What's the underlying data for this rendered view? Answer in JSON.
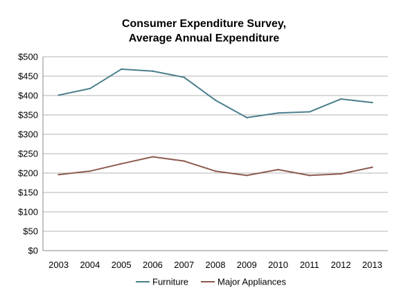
{
  "chart_data": {
    "type": "line",
    "title_line1": "Consumer Expenditure Survey,",
    "title_line2": "Average Annual Expenditure",
    "xlabel": "",
    "ylabel": "",
    "categories": [
      "2003",
      "2004",
      "2005",
      "2006",
      "2007",
      "2008",
      "2009",
      "2010",
      "2011",
      "2012",
      "2013"
    ],
    "ylim": [
      0,
      500
    ],
    "ytick_labels": [
      "$0",
      "$50",
      "$100",
      "$150",
      "$200",
      "$250",
      "$300",
      "$350",
      "$400",
      "$450",
      "$500"
    ],
    "grid": true,
    "legend_position": "bottom",
    "series": [
      {
        "name": "Furniture",
        "color": "#4a7e8c",
        "values": [
          401,
          418,
          468,
          463,
          447,
          388,
          343,
          355,
          358,
          391,
          382
        ]
      },
      {
        "name": "Major Appliances",
        "color": "#8c5a4e",
        "values": [
          196,
          205,
          224,
          242,
          231,
          205,
          194,
          209,
          194,
          198,
          215
        ]
      }
    ]
  }
}
